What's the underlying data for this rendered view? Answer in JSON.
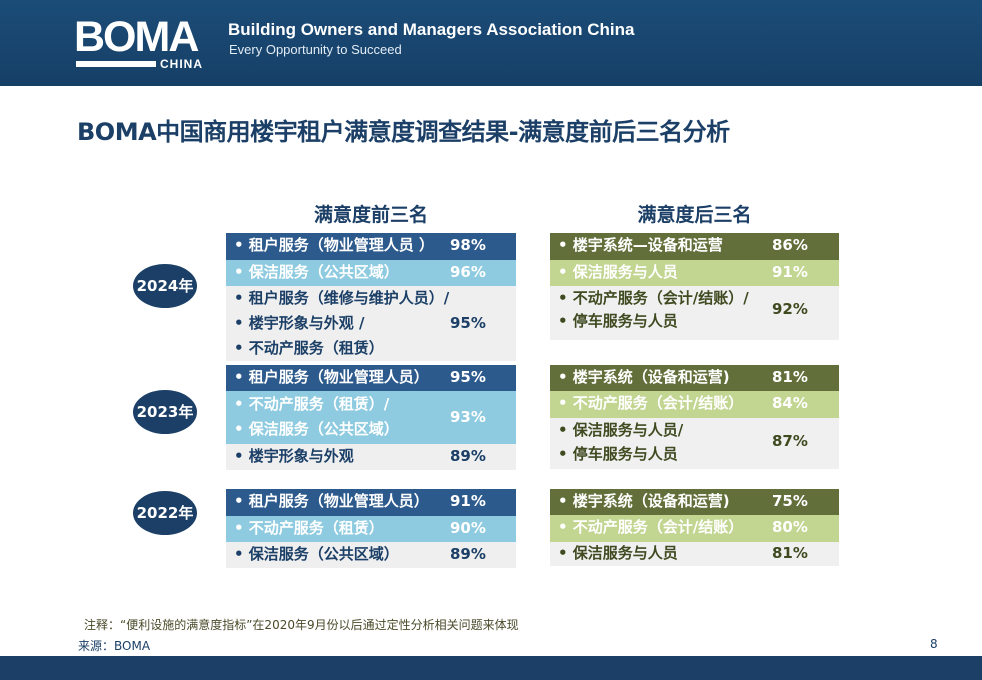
{
  "header": {
    "logo_word": "BOMA",
    "logo_sub": "CHINA",
    "org_name": "Building Owners and Managers Association China",
    "tagline": "Every Opportunity to Succeed"
  },
  "title": "BOMA中国商用楼宇租户满意度调查结果-满意度前后三名分析",
  "top3": {
    "heading": "满意度前三名",
    "y2024": [
      {
        "label": "• 租户服务（物业管理人员 ）",
        "pct": "98%"
      },
      {
        "label": "• 保洁服务（公共区域）",
        "pct": "96%"
      },
      {
        "label1": "• 租户服务（维修与维护人员）/",
        "label2": "• 楼宇形象与外观 /",
        "label3": "• 不动产服务（租赁）",
        "pct": "95%"
      }
    ],
    "y2023": [
      {
        "label": "• 租户服务（物业管理人员）",
        "pct": "95%"
      },
      {
        "label1": "• 不动产服务（租赁）/",
        "label2": "• 保洁服务（公共区域）",
        "pct": "93%"
      },
      {
        "label": "• 楼宇形象与外观",
        "pct": "89%"
      }
    ],
    "y2022": [
      {
        "label": "• 租户服务（物业管理人员）",
        "pct": "91%"
      },
      {
        "label": "• 不动产服务（租赁）",
        "pct": "90%"
      },
      {
        "label": "• 保洁服务（公共区域）",
        "pct": "89%"
      }
    ]
  },
  "bottom3": {
    "heading": "满意度后三名",
    "y2024": [
      {
        "label": "• 楼宇系统—设备和运营",
        "pct": "86%"
      },
      {
        "label": "• 保洁服务与人员",
        "pct": "91%"
      },
      {
        "label1": "• 不动产服务（会计/结账）/",
        "label2": "• 停车服务与人员",
        "pct": "92%"
      }
    ],
    "y2023": [
      {
        "label": "• 楼宇系统（设备和运营)",
        "pct": "81%"
      },
      {
        "label": "• 不动产服务（会计/结账）",
        "pct": "84%"
      },
      {
        "label1": "• 保洁服务与人员/",
        "label2": "• 停车服务与人员",
        "pct": "87%"
      }
    ],
    "y2022": [
      {
        "label": "• 楼宇系统（设备和运营)",
        "pct": "75%"
      },
      {
        "label": "• 不动产服务（会计/结账）",
        "pct": "80%"
      },
      {
        "label": "• 保洁服务与人员",
        "pct": "81%"
      }
    ]
  },
  "years": [
    "2024年",
    "2023年",
    "2022年"
  ],
  "note": "注释：“便利设施的满意度指标”在2020年9月份以后通过定性分析相关问题来体现",
  "source": "来源：BOMA",
  "page_number": "8",
  "colors": {
    "navy": "#1b3f66",
    "left_dark": "#2d5a8c",
    "left_light": "#8ecbe0",
    "right_dark": "#636f3a",
    "right_light": "#c2d591"
  }
}
